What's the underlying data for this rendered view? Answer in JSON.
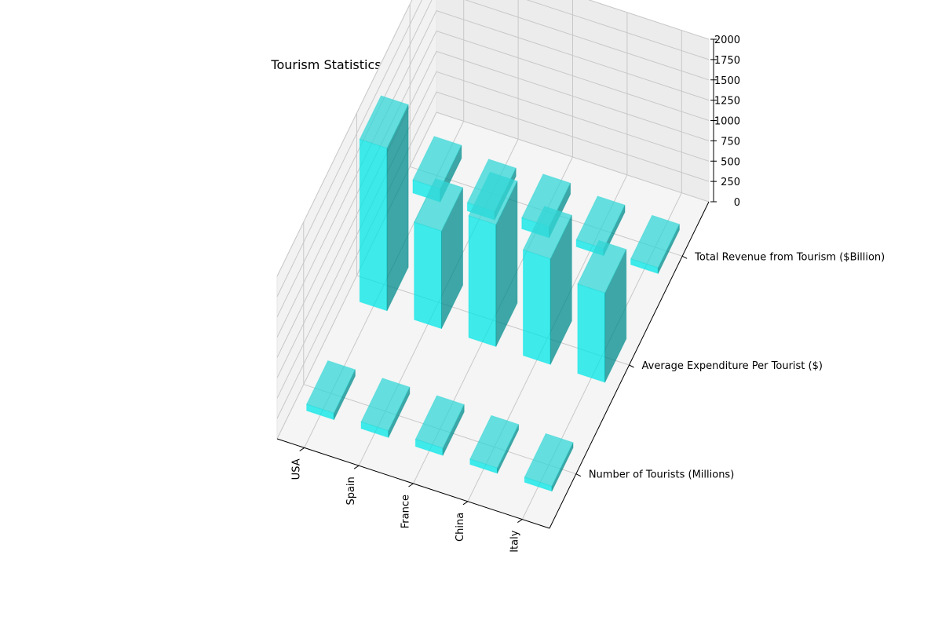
{
  "chart_data": {
    "type": "bar",
    "projection": "3d",
    "title": "Tourism Statistics and Revenue Analysis – International Perspective",
    "categories": [
      "USA",
      "Spain",
      "France",
      "China",
      "Italy"
    ],
    "metrics": [
      "Number of Tourists (Millions)",
      "Average Expenditure Per Tourist ($)",
      "Total Revenue from Tourism ($Billion)"
    ],
    "series": [
      {
        "name": "Number of Tourists (Millions)",
        "values": [
          79,
          83,
          89,
          65,
          62
        ]
      },
      {
        "name": "Average Expenditure Per Tourist ($)",
        "values": [
          2000,
          1200,
          1500,
          1300,
          1100
        ]
      },
      {
        "name": "Total Revenue from Tourism ($Billion)",
        "values": [
          160,
          100,
          135,
          85,
          70
        ]
      }
    ],
    "zlim": [
      0,
      2000
    ],
    "z_ticks": [
      0,
      250,
      500,
      750,
      1000,
      1250,
      1500,
      1750,
      2000
    ],
    "grid": true,
    "bar_color": "#00e5e5",
    "bar_top_color": "#33d6d6",
    "bar_side_color": "#008b8b",
    "bar_opacity": 0.75
  }
}
